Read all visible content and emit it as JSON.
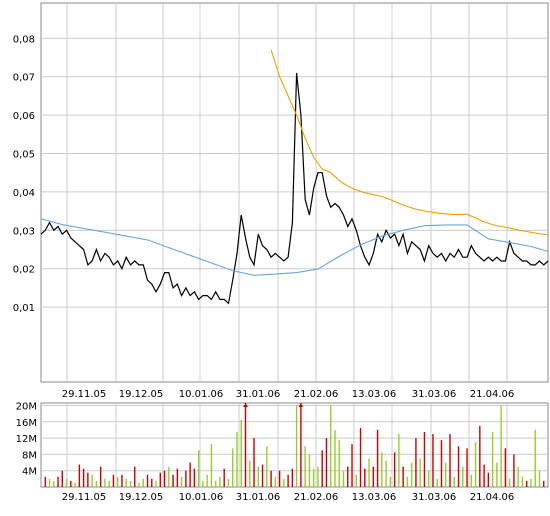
{
  "chart_data": [
    {
      "type": "line",
      "x_tick_labels": [
        "29.11.05",
        "19.12.05",
        "10.01.06",
        "31.01.06",
        "21.02.06",
        "13.03.06",
        "31.03.06",
        "21.04.06"
      ],
      "y_tick_labels": [
        "0,01",
        "0,02",
        "0,03",
        "0,04",
        "0,05",
        "0,06",
        "0,07",
        "0,08"
      ],
      "y_ticks": [
        0.01,
        0.02,
        0.03,
        0.04,
        0.05,
        0.06,
        0.07,
        0.08
      ],
      "ylim": [
        -0.0095,
        0.0892
      ],
      "xlim": [
        0,
        119
      ],
      "grid": true,
      "series": [
        {
          "color": "#000000",
          "x": [
            0,
            1,
            2,
            3,
            4,
            5,
            6,
            7,
            8,
            9,
            10,
            11,
            12,
            13,
            14,
            15,
            16,
            17,
            18,
            19,
            20,
            21,
            22,
            23,
            24,
            25,
            26,
            27,
            28,
            29,
            30,
            31,
            32,
            33,
            34,
            35,
            36,
            37,
            38,
            39,
            40,
            41,
            42,
            43,
            44,
            45,
            46,
            47,
            48,
            49,
            50,
            51,
            52,
            53,
            54,
            55,
            56,
            57,
            58,
            59,
            60,
            61,
            62,
            63,
            64,
            65,
            66,
            67,
            68,
            69,
            70,
            71,
            72,
            73,
            74,
            75,
            76,
            77,
            78,
            79,
            80,
            81,
            82,
            83,
            84,
            85,
            86,
            87,
            88,
            89,
            90,
            91,
            92,
            93,
            94,
            95,
            96,
            97,
            98,
            99,
            100,
            101,
            102,
            103,
            104,
            105,
            106,
            107,
            108,
            109,
            110,
            111,
            112,
            113,
            114,
            115,
            116,
            117,
            118,
            119
          ],
          "values": [
            0.029,
            0.03,
            0.032,
            0.03,
            0.031,
            0.029,
            0.03,
            0.028,
            0.027,
            0.026,
            0.025,
            0.021,
            0.022,
            0.025,
            0.022,
            0.024,
            0.023,
            0.021,
            0.022,
            0.02,
            0.023,
            0.021,
            0.022,
            0.021,
            0.021,
            0.017,
            0.016,
            0.014,
            0.016,
            0.019,
            0.019,
            0.015,
            0.016,
            0.013,
            0.015,
            0.013,
            0.014,
            0.012,
            0.013,
            0.013,
            0.012,
            0.014,
            0.012,
            0.012,
            0.011,
            0.017,
            0.024,
            0.034,
            0.028,
            0.023,
            0.021,
            0.029,
            0.026,
            0.025,
            0.023,
            0.024,
            0.023,
            0.022,
            0.023,
            0.032,
            0.071,
            0.06,
            0.038,
            0.034,
            0.041,
            0.045,
            0.045,
            0.039,
            0.036,
            0.037,
            0.036,
            0.034,
            0.031,
            0.033,
            0.03,
            0.026,
            0.023,
            0.021,
            0.024,
            0.029,
            0.027,
            0.03,
            0.028,
            0.029,
            0.026,
            0.029,
            0.024,
            0.027,
            0.026,
            0.025,
            0.022,
            0.026,
            0.024,
            0.023,
            0.024,
            0.022,
            0.024,
            0.023,
            0.025,
            0.023,
            0.023,
            0.026,
            0.024,
            0.023,
            0.022,
            0.023,
            0.022,
            0.023,
            0.022,
            0.022,
            0.027,
            0.024,
            0.023,
            0.022,
            0.022,
            0.021,
            0.021,
            0.022,
            0.021,
            0.022
          ]
        },
        {
          "color": "#6aa8e0",
          "x": [
            0,
            5,
            10,
            15,
            20,
            25,
            30,
            35,
            40,
            45,
            50,
            55,
            60,
            65,
            70,
            75,
            80,
            85,
            90,
            95,
            100,
            105,
            110,
            115,
            119
          ],
          "values": [
            0.033,
            0.0315,
            0.0305,
            0.0295,
            0.0285,
            0.0275,
            0.0255,
            0.0235,
            0.0215,
            0.0195,
            0.0183,
            0.0186,
            0.019,
            0.0199,
            0.0232,
            0.0262,
            0.0285,
            0.03,
            0.0312,
            0.0314,
            0.0314,
            0.0278,
            0.0268,
            0.0258,
            0.0245
          ]
        },
        {
          "color": "#f0a000",
          "x": [
            54,
            56,
            58,
            60,
            62,
            64,
            66,
            68,
            70,
            72,
            74,
            76,
            78,
            80,
            82,
            84,
            86,
            88,
            90,
            92,
            94,
            96,
            98,
            100,
            102,
            104,
            106,
            108,
            110,
            112,
            114,
            116,
            119
          ],
          "values": [
            0.077,
            0.07,
            0.065,
            0.06,
            0.054,
            0.049,
            0.046,
            0.045,
            0.043,
            0.0415,
            0.0405,
            0.0398,
            0.0393,
            0.0388,
            0.038,
            0.037,
            0.0362,
            0.0355,
            0.035,
            0.0347,
            0.0344,
            0.0342,
            0.0341,
            0.0342,
            0.0332,
            0.0322,
            0.0315,
            0.031,
            0.0306,
            0.0301,
            0.0297,
            0.0293,
            0.0288
          ]
        }
      ]
    },
    {
      "type": "bar",
      "y_tick_labels": [
        "4M",
        "8M",
        "12M",
        "16M",
        "20M"
      ],
      "y_ticks": [
        4,
        8,
        12,
        16,
        20
      ],
      "ylim": [
        0,
        20.6
      ],
      "x_tick_labels": [
        "29.11.05",
        "19.12.05",
        "10.01.06",
        "31.01.06",
        "21.02.06",
        "13.03.06",
        "31.03.06",
        "21.04.06"
      ],
      "grid": true,
      "colors": {
        "red": "#cc0000",
        "green": "#99cc33"
      },
      "x": [
        1,
        2,
        3,
        4,
        5,
        6,
        7,
        8,
        9,
        10,
        11,
        12,
        13,
        14,
        15,
        16,
        17,
        18,
        19,
        20,
        21,
        22,
        23,
        24,
        25,
        26,
        27,
        28,
        29,
        30,
        31,
        32,
        33,
        34,
        35,
        36,
        37,
        38,
        39,
        40,
        41,
        42,
        43,
        44,
        45,
        46,
        47,
        48,
        49,
        50,
        51,
        52,
        53,
        54,
        55,
        56,
        57,
        58,
        59,
        60,
        61,
        62,
        63,
        64,
        65,
        66,
        67,
        68,
        69,
        70,
        71,
        72,
        73,
        74,
        75,
        76,
        77,
        78,
        79,
        80,
        81,
        82,
        83,
        84,
        85,
        86,
        87,
        88,
        89,
        90,
        91,
        92,
        93,
        94,
        95,
        96,
        97,
        98,
        99,
        100,
        101,
        102,
        103,
        104,
        105,
        106,
        107,
        108,
        109,
        110,
        111,
        112,
        113,
        114,
        115,
        116,
        117,
        118
      ],
      "values": [
        2.5,
        2.0,
        1.5,
        2.5,
        4.0,
        2.0,
        1.5,
        1.0,
        5.5,
        4.5,
        3.5,
        3.0,
        1.5,
        5.0,
        2.0,
        1.5,
        3.0,
        2.5,
        3.0,
        2.0,
        1.5,
        5.0,
        1.0,
        2.0,
        3.0,
        2.0,
        1.5,
        3.5,
        4.0,
        5.0,
        3.0,
        4.5,
        2.5,
        4.0,
        6.0,
        4.5,
        9.0,
        1.5,
        3.0,
        10.5,
        1.5,
        2.5,
        4.5,
        2.0,
        9.5,
        13.5,
        16.5,
        21,
        6.5,
        12.0,
        5.0,
        5.5,
        10.0,
        4.0,
        2.5,
        4.0,
        2.0,
        3.0,
        4.5,
        20,
        21,
        10.0,
        8.0,
        4.5,
        5.0,
        9.0,
        12.0,
        20,
        14.0,
        11.5,
        4.0,
        5.0,
        10.5,
        3.0,
        14.5,
        4.5,
        7.0,
        5.0,
        14.0,
        8.5,
        6.5,
        2.5,
        8.5,
        13.0,
        5.0,
        2.5,
        6.0,
        12.0,
        7.0,
        13.5,
        4.0,
        13.0,
        2.0,
        11.5,
        6.0,
        13.0,
        2.5,
        10.0,
        5.0,
        9.5,
        3.0,
        11.0,
        15.0,
        5.5,
        3.5,
        13.5,
        6.0,
        20,
        9.5,
        2.0,
        8.0,
        5.0,
        2.5,
        1.5,
        2.0,
        14.0,
        4.0,
        1.5
      ],
      "colors_by_bar": [
        "r",
        "g",
        "g",
        "r",
        "r",
        "g",
        "r",
        "g",
        "r",
        "r",
        "r",
        "g",
        "g",
        "r",
        "g",
        "g",
        "r",
        "g",
        "r",
        "g",
        "g",
        "r",
        "g",
        "g",
        "r",
        "r",
        "g",
        "r",
        "r",
        "g",
        "r",
        "r",
        "g",
        "r",
        "r",
        "r",
        "g",
        "g",
        "g",
        "g",
        "g",
        "g",
        "r",
        "g",
        "g",
        "g",
        "g",
        "r",
        "g",
        "r",
        "g",
        "r",
        "g",
        "r",
        "g",
        "r",
        "g",
        "r",
        "r",
        "g",
        "r",
        "g",
        "g",
        "g",
        "g",
        "r",
        "r",
        "g",
        "g",
        "g",
        "g",
        "r",
        "r",
        "g",
        "r",
        "r",
        "g",
        "r",
        "r",
        "g",
        "g",
        "g",
        "r",
        "g",
        "r",
        "g",
        "g",
        "r",
        "g",
        "r",
        "g",
        "r",
        "g",
        "r",
        "g",
        "r",
        "g",
        "r",
        "g",
        "r",
        "g",
        "g",
        "r",
        "r",
        "r",
        "g",
        "g",
        "g",
        "r",
        "g",
        "r",
        "g",
        "g",
        "r",
        "g",
        "g",
        "g",
        "r"
      ]
    }
  ]
}
